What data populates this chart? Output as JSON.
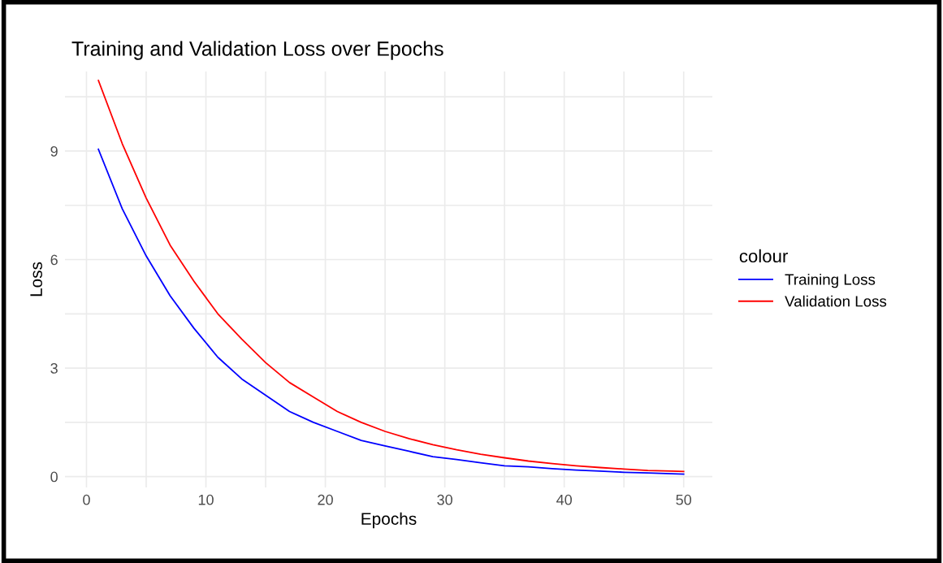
{
  "chart_data": {
    "type": "line",
    "title": "Training and Validation Loss over Epochs",
    "xlabel": "Epochs",
    "ylabel": "Loss",
    "legend_title": "colour",
    "legend": "right",
    "grid": true,
    "line_style": "solid",
    "x": [
      1,
      3,
      5,
      7,
      9,
      11,
      13,
      15,
      17,
      19,
      21,
      23,
      25,
      27,
      29,
      31,
      33,
      35,
      37,
      39,
      41,
      43,
      45,
      47,
      49,
      50
    ],
    "series": [
      {
        "name": "Training Loss",
        "color": "#0000ff",
        "values": [
          9.05,
          7.4,
          6.1,
          5.0,
          4.1,
          3.3,
          2.7,
          2.25,
          1.8,
          1.5,
          1.25,
          1.0,
          0.85,
          0.7,
          0.55,
          0.47,
          0.38,
          0.3,
          0.27,
          0.22,
          0.18,
          0.15,
          0.12,
          0.1,
          0.08,
          0.07
        ]
      },
      {
        "name": "Validation Loss",
        "color": "#ff0000",
        "values": [
          10.95,
          9.2,
          7.7,
          6.4,
          5.4,
          4.5,
          3.8,
          3.15,
          2.6,
          2.2,
          1.8,
          1.5,
          1.25,
          1.05,
          0.88,
          0.74,
          0.62,
          0.52,
          0.43,
          0.36,
          0.3,
          0.25,
          0.21,
          0.17,
          0.15,
          0.14
        ]
      }
    ],
    "xlim": [
      -1.8,
      52.4
    ],
    "ylim": [
      -0.3,
      11.2
    ],
    "xticks": [
      0,
      {
        "value": 5,
        "label": null
      },
      10,
      {
        "value": 15,
        "label": null
      },
      20,
      {
        "value": 25,
        "label": null
      },
      30,
      {
        "value": 35,
        "label": null
      },
      40,
      {
        "value": 45,
        "label": null
      },
      50
    ],
    "yticks": [
      0,
      {
        "value": 1.5,
        "label": null
      },
      3,
      {
        "value": 4.5,
        "label": null
      },
      6,
      {
        "value": 7.5,
        "label": null
      },
      9,
      {
        "value": 10.5,
        "label": null
      }
    ]
  }
}
